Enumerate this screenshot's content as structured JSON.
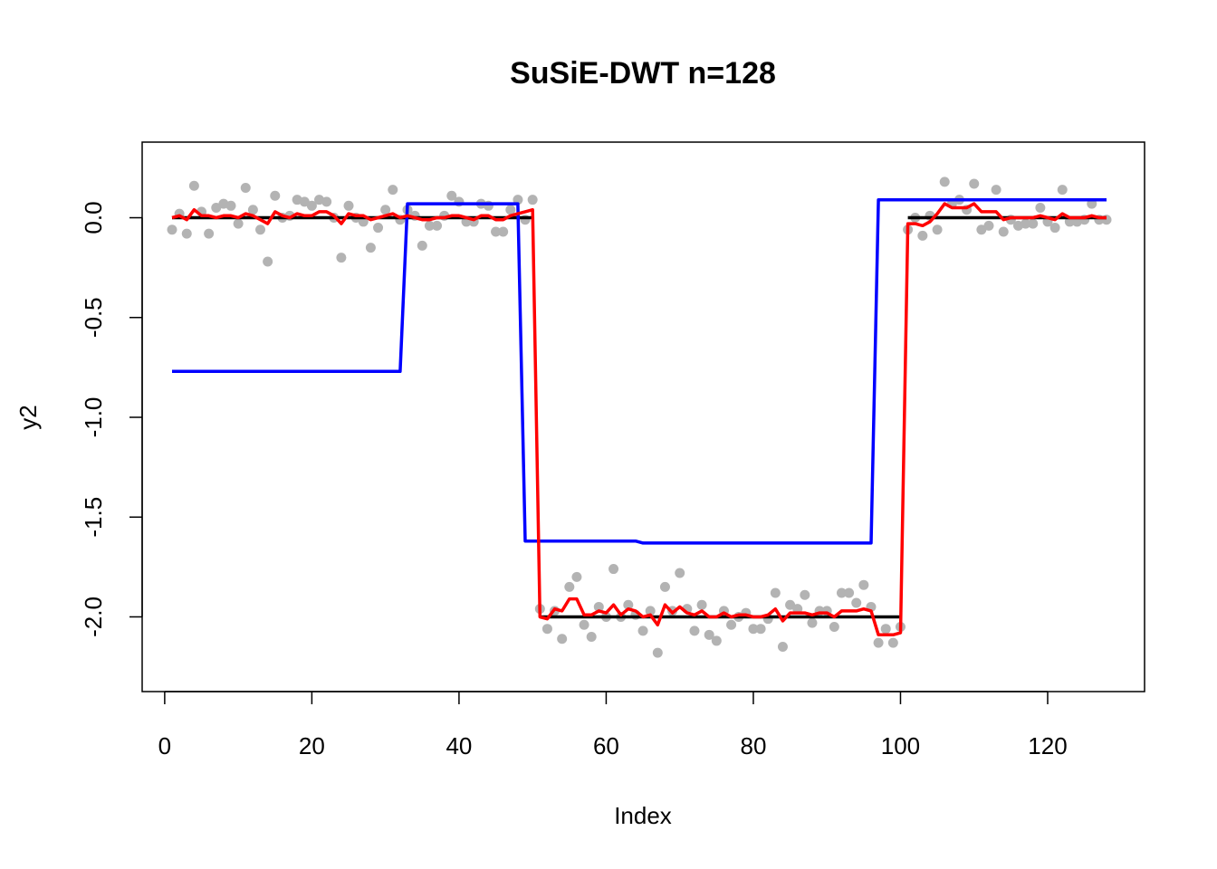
{
  "chart_data": {
    "type": "line",
    "title": "SuSiE-DWT n=128",
    "xlabel": "Index",
    "ylabel": "y2",
    "xlim": [
      1,
      128
    ],
    "ylim": [
      -2.27,
      0.27
    ],
    "x_ticks": [
      0,
      20,
      40,
      60,
      80,
      100,
      120
    ],
    "y_ticks": [
      0.0,
      -0.5,
      -1.0,
      -1.5,
      -2.0
    ],
    "x_tick_labels": [
      "0",
      "20",
      "40",
      "60",
      "80",
      "100",
      "120"
    ],
    "y_tick_labels": [
      "0.0",
      "-0.5",
      "-1.0",
      "-1.5",
      "-2.0"
    ],
    "grid": false,
    "legend": "none",
    "colors": {
      "truth": "#000000",
      "blue_fit": "#0000ff",
      "red_fit": "#ff0000",
      "points": "#b3b3b3"
    },
    "truth": [
      [
        [
          1,
          0
        ],
        [
          50,
          0
        ]
      ],
      [
        [
          51,
          -2
        ],
        [
          100,
          -2
        ]
      ],
      [
        [
          101,
          0
        ],
        [
          128,
          0
        ]
      ]
    ],
    "blue_fit": [
      [
        1,
        -0.77
      ],
      [
        32,
        -0.77
      ],
      [
        33,
        0.07
      ],
      [
        48,
        0.07
      ],
      [
        49,
        -1.62
      ],
      [
        64,
        -1.62
      ],
      [
        65,
        -1.63
      ],
      [
        96,
        -1.63
      ],
      [
        97,
        0.09
      ],
      [
        128,
        0.09
      ]
    ],
    "points": [
      -0.06,
      0.02,
      -0.08,
      0.16,
      0.03,
      -0.08,
      0.05,
      0.07,
      0.06,
      -0.03,
      0.15,
      0.04,
      -0.06,
      -0.22,
      0.11,
      0.0,
      0.01,
      0.09,
      0.08,
      0.06,
      0.09,
      0.08,
      0.0,
      -0.2,
      0.06,
      0.0,
      -0.02,
      -0.15,
      -0.05,
      0.04,
      0.14,
      -0.01,
      0.04,
      0.01,
      -0.14,
      -0.04,
      -0.04,
      0.01,
      0.11,
      0.08,
      -0.02,
      -0.02,
      0.07,
      0.06,
      -0.07,
      -0.07,
      0.04,
      0.09,
      -0.01,
      0.09,
      -1.96,
      -2.06,
      -1.97,
      -2.11,
      -1.85,
      -1.8,
      -2.04,
      -2.1,
      -1.95,
      -2.0,
      -1.76,
      -2.0,
      -1.94,
      -1.99,
      -2.07,
      -1.97,
      -2.18,
      -1.85,
      -1.97,
      -1.78,
      -1.96,
      -2.07,
      -1.94,
      -2.09,
      -2.12,
      -1.97,
      -2.04,
      -2.0,
      -1.98,
      -2.06,
      -2.06,
      -2.01,
      -1.88,
      -2.15,
      -1.94,
      -1.96,
      -1.89,
      -2.03,
      -1.97,
      -1.97,
      -2.05,
      -1.88,
      -1.88,
      -1.93,
      -1.84,
      -1.95,
      -2.13,
      -2.06,
      -2.13,
      -2.05,
      -0.06,
      0.0,
      -0.09,
      0.01,
      -0.06,
      0.18,
      0.07,
      0.09,
      0.04,
      0.17,
      -0.06,
      -0.04,
      0.14,
      -0.07,
      -0.01,
      -0.04,
      -0.03,
      -0.03,
      0.05,
      -0.02,
      -0.05,
      0.14,
      -0.02,
      -0.02,
      -0.01,
      0.07,
      -0.01,
      -0.01
    ],
    "red_fit": [
      0.0,
      0.01,
      -0.01,
      0.04,
      0.01,
      0.01,
      0.0,
      0.01,
      0.01,
      0.0,
      0.02,
      0.01,
      -0.01,
      -0.03,
      0.03,
      0.01,
      0.0,
      0.02,
      0.01,
      0.01,
      0.03,
      0.03,
      0.01,
      -0.03,
      0.02,
      0.01,
      0.01,
      -0.01,
      0.0,
      0.01,
      0.02,
      0.0,
      0.01,
      0.0,
      -0.01,
      -0.01,
      0.0,
      0.0,
      0.01,
      0.01,
      0.0,
      -0.01,
      0.01,
      0.01,
      -0.01,
      -0.01,
      0.01,
      0.02,
      0.03,
      0.04,
      -2.0,
      -2.01,
      -1.96,
      -1.97,
      -1.91,
      -1.91,
      -1.99,
      -1.99,
      -1.97,
      -1.98,
      -1.94,
      -1.99,
      -1.96,
      -1.97,
      -2.0,
      -1.99,
      -2.04,
      -1.94,
      -1.98,
      -1.95,
      -1.98,
      -1.99,
      -1.97,
      -2.0,
      -2.0,
      -1.98,
      -2.0,
      -1.99,
      -1.99,
      -2.0,
      -2.0,
      -1.99,
      -1.96,
      -2.02,
      -1.98,
      -1.98,
      -1.98,
      -1.99,
      -1.98,
      -1.98,
      -2.0,
      -1.97,
      -1.97,
      -1.97,
      -1.96,
      -1.97,
      -2.09,
      -2.09,
      -2.09,
      -2.08,
      -0.03,
      -0.03,
      -0.04,
      -0.02,
      0.02,
      0.07,
      0.05,
      0.05,
      0.05,
      0.07,
      0.03,
      0.03,
      0.03,
      -0.01,
      0.0,
      0.0,
      0.0,
      0.0,
      0.01,
      0.0,
      -0.01,
      0.02,
      0.0,
      0.0,
      0.0,
      0.01,
      0.0,
      0.0
    ]
  }
}
